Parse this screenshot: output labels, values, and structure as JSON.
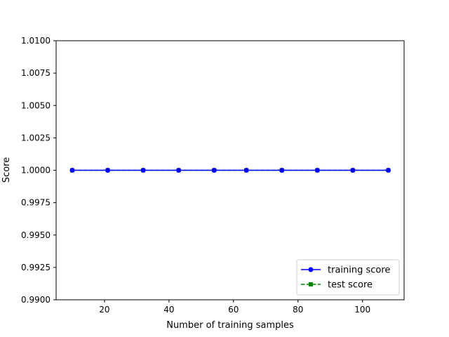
{
  "chart_data": {
    "type": "line",
    "xlabel": "Number of training samples",
    "ylabel": "Score",
    "xlim": [
      5,
      112.9
    ],
    "ylim": [
      0.99,
      1.01
    ],
    "xticks": [
      20,
      40,
      60,
      80,
      100
    ],
    "yticks": [
      0.99,
      0.9925,
      0.995,
      0.9975,
      1.0,
      1.0025,
      1.005,
      1.0075,
      1.01
    ],
    "ytick_labels": [
      "0.9900",
      "0.9925",
      "0.9950",
      "0.9975",
      "1.0000",
      "1.0025",
      "1.0050",
      "1.0075",
      "1.0100"
    ],
    "xtick_labels": [
      "20",
      "40",
      "60",
      "80",
      "100"
    ],
    "x": [
      10,
      21,
      32,
      43,
      54,
      64,
      75,
      86,
      97,
      108
    ],
    "series": [
      {
        "name": "training score",
        "values": [
          1,
          1,
          1,
          1,
          1,
          1,
          1,
          1,
          1,
          1
        ],
        "color": "#0000ff",
        "marker": "circle",
        "linestyle": "solid"
      },
      {
        "name": "test score",
        "values": [
          1,
          1,
          1,
          1,
          1,
          1,
          1,
          1,
          1,
          1
        ],
        "color": "#008000",
        "marker": "square",
        "linestyle": "dashed"
      }
    ],
    "legend_position": "lower-right",
    "grid": false
  }
}
